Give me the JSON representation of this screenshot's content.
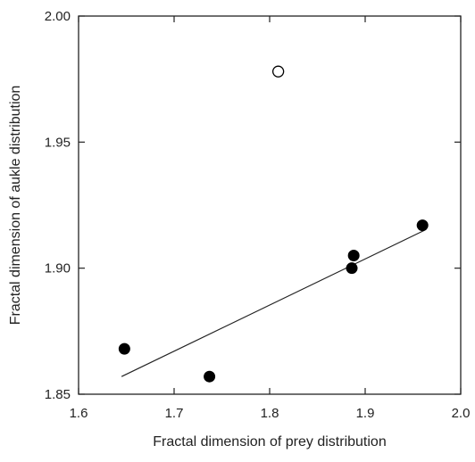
{
  "chart_data": {
    "type": "scatter",
    "title": "",
    "xlabel": "Fractal dimension of prey distribution",
    "ylabel": "Fractal dimension of aukle distribution",
    "xlim": [
      1.6,
      2.0
    ],
    "ylim": [
      1.85,
      2.0
    ],
    "x_ticks": [
      "1.6",
      "1.7",
      "1.8",
      "1.9",
      "2.0"
    ],
    "y_ticks": [
      "1.85",
      "1.90",
      "1.95",
      "2.00"
    ],
    "grid": false,
    "series": [
      {
        "marker": "filled-circle",
        "x": [
          1.648,
          1.737,
          1.886,
          1.888,
          1.96
        ],
        "y": [
          1.868,
          1.857,
          1.9,
          1.905,
          1.917
        ]
      },
      {
        "marker": "open-circle",
        "x": [
          1.809
        ],
        "y": [
          1.978
        ]
      }
    ],
    "regression_line": {
      "x": [
        1.645,
        1.962
      ],
      "y": [
        1.857,
        1.915
      ]
    },
    "colors": {
      "axis": "#222222",
      "marker": "#000000",
      "line": "#222222"
    }
  }
}
